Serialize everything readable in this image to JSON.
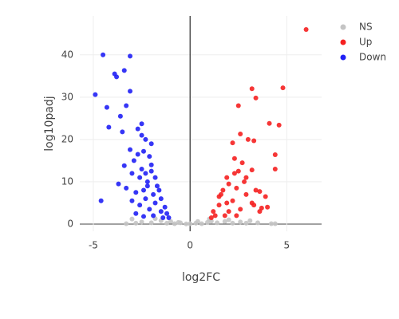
{
  "chart_data": {
    "type": "scatter",
    "x_label": "log2FC",
    "y_label": "log10padj",
    "xlim": [
      -5.7,
      6.8
    ],
    "ylim": [
      -1.7,
      49.2
    ],
    "xticks": [
      -5,
      0,
      5
    ],
    "yticks": [
      0,
      10,
      20,
      30,
      40
    ],
    "grid": true,
    "zeroline": true,
    "legend": "top-right",
    "series": [
      {
        "name": "NS",
        "color": "#c4c4c4",
        "x": [
          -3.0,
          -2.5,
          -2.0,
          -1.5,
          -1.2,
          -1.0,
          -0.8,
          -0.5,
          -0.2,
          0,
          0.3,
          0.6,
          0.9,
          1.1,
          1.4,
          1.8,
          2.2,
          2.6,
          3.1,
          3.5,
          4.2,
          4.4,
          -1.8,
          -0.6,
          0.4,
          2.0,
          2.9,
          -2.8,
          -3.3,
          1.0
        ],
        "y": [
          1.2,
          0.5,
          0.3,
          0.8,
          0.2,
          0.6,
          0.1,
          0.3,
          0.05,
          0.1,
          0.2,
          0.1,
          0.4,
          0.7,
          0.3,
          0.6,
          0.2,
          0.5,
          0.8,
          0.3,
          0.1,
          0.1,
          1.3,
          0.4,
          0.6,
          1.0,
          0.2,
          0.2,
          0.1,
          1.2
        ]
      },
      {
        "name": "Up",
        "color": "#f52020",
        "x": [
          6.0,
          4.8,
          3.2,
          3.4,
          2.5,
          4.1,
          4.6,
          2.6,
          3.0,
          2.2,
          3.3,
          4.4,
          2.3,
          2.7,
          4.4,
          2.5,
          3.2,
          2.9,
          1.9,
          3.4,
          3.6,
          2.4,
          1.7,
          3.9,
          2.9,
          1.5,
          3.2,
          2.2,
          3.7,
          4.0,
          3.3,
          2.6,
          1.5,
          1.2,
          2.0,
          3.6,
          1.3,
          2.4,
          1.8,
          1.1,
          2.8,
          2.0,
          1.6,
          2.3,
          1.9
        ],
        "y": [
          46,
          32.2,
          32,
          29.8,
          28,
          23.8,
          23.4,
          21.3,
          20,
          19.2,
          19.7,
          16.4,
          15.5,
          14.5,
          13,
          12.5,
          12.8,
          11,
          11,
          8,
          7.7,
          8.5,
          8,
          6.5,
          7,
          6.5,
          5,
          5.5,
          3.8,
          4,
          4.5,
          3.5,
          4.5,
          3,
          3,
          3,
          2,
          2,
          2,
          1.5,
          10,
          9.5,
          7,
          12,
          5
        ]
      },
      {
        "name": "Down",
        "color": "#2020f5",
        "x": [
          -4.5,
          -3.1,
          -3.9,
          -3.8,
          -3.4,
          -4.9,
          -3.1,
          -4.3,
          -3.3,
          -3.6,
          -2.5,
          -4.2,
          -2.7,
          -3.5,
          -2.5,
          -2.3,
          -2.0,
          -3.1,
          -2.4,
          -2.1,
          -2.9,
          -3.4,
          -2.5,
          -2.0,
          -3.0,
          -2.6,
          -1.8,
          -3.7,
          -3.3,
          -2.2,
          -1.6,
          -2.8,
          -1.9,
          -4.6,
          -3.0,
          -2.3,
          -1.5,
          -2.6,
          -1.8,
          -1.3,
          -2.1,
          -1.5,
          -2.8,
          -1.2,
          -1.9,
          -1.4,
          -2.4,
          -1.1,
          -2.2,
          -2.0,
          -1.7,
          -2.4,
          -2.7,
          -2.3
        ],
        "y": [
          40,
          39.7,
          35.5,
          34.8,
          36.3,
          30.6,
          31.4,
          27.6,
          28,
          25.5,
          23.7,
          22.9,
          22.5,
          21.8,
          21,
          20,
          19,
          17.6,
          17.2,
          16,
          15,
          13.8,
          13,
          12.5,
          12,
          11,
          11,
          9.5,
          8.5,
          9,
          8,
          7.5,
          7,
          5.5,
          5.5,
          6,
          6,
          4.5,
          5,
          4,
          3.5,
          3,
          2.5,
          2.5,
          2,
          1.5,
          1.8,
          1.5,
          10,
          14,
          9,
          8,
          16.5,
          12
        ]
      }
    ]
  }
}
